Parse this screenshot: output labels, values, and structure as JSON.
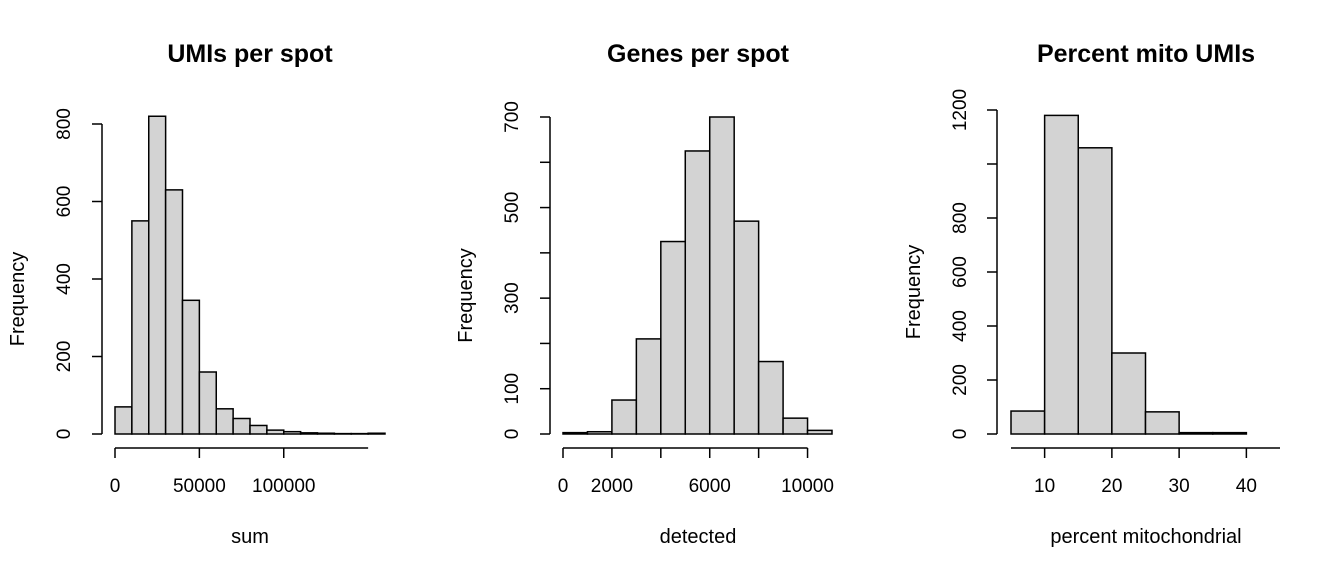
{
  "chart_data": [
    {
      "type": "bar",
      "title": "UMIs per spot",
      "xlabel": "sum",
      "ylabel": "Frequency",
      "bin_edges": [
        0,
        10000,
        20000,
        30000,
        40000,
        50000,
        60000,
        70000,
        80000,
        90000,
        100000,
        110000,
        120000,
        130000,
        140000,
        150000,
        160000
      ],
      "values": [
        70,
        550,
        820,
        630,
        345,
        160,
        65,
        40,
        22,
        10,
        6,
        3,
        2,
        1,
        1,
        2
      ],
      "xlim": [
        0,
        160000
      ],
      "ylim": [
        0,
        800
      ],
      "xticks": [
        0,
        50000,
        100000
      ],
      "xtick_labels": [
        "0",
        "50000",
        "100000"
      ],
      "x_axis_end": 150000,
      "yticks": [
        0,
        200,
        400,
        600,
        800
      ],
      "ytick_labels": [
        "0",
        "200",
        "400",
        "600",
        "800"
      ]
    },
    {
      "type": "bar",
      "title": "Genes per spot",
      "xlabel": "detected",
      "ylabel": "Frequency",
      "bin_edges": [
        0,
        1000,
        2000,
        3000,
        4000,
        5000,
        6000,
        7000,
        8000,
        9000,
        10000,
        11000
      ],
      "values": [
        3,
        5,
        75,
        210,
        425,
        625,
        700,
        470,
        160,
        35,
        8
      ],
      "xlim": [
        0,
        11000
      ],
      "ylim": [
        0,
        700
      ],
      "xticks": [
        0,
        2000,
        4000,
        6000,
        8000,
        10000
      ],
      "xtick_labels": [
        "0",
        "2000",
        "",
        "6000",
        "",
        "10000"
      ],
      "yticks": [
        0,
        100,
        200,
        300,
        400,
        500,
        600,
        700
      ],
      "ytick_labels": [
        "0",
        "100",
        "",
        "300",
        "",
        "500",
        "",
        "700"
      ]
    },
    {
      "type": "bar",
      "title": "Percent mito UMIs",
      "xlabel": "percent mitochondrial",
      "ylabel": "Frequency",
      "bin_edges": [
        5,
        10,
        15,
        20,
        25,
        30,
        35,
        40
      ],
      "values": [
        85,
        1180,
        1060,
        300,
        82,
        5,
        5
      ],
      "xlim": [
        5,
        45
      ],
      "ylim": [
        0,
        1200
      ],
      "xticks": [
        10,
        20,
        30,
        40
      ],
      "xtick_labels": [
        "10",
        "20",
        "30",
        "40"
      ],
      "x_axis_start": 5,
      "x_axis_end": 45,
      "yticks": [
        0,
        200,
        400,
        600,
        800,
        1000,
        1200
      ],
      "ytick_labels": [
        "0",
        "200",
        "400",
        "600",
        "800",
        "",
        "1200"
      ]
    }
  ]
}
